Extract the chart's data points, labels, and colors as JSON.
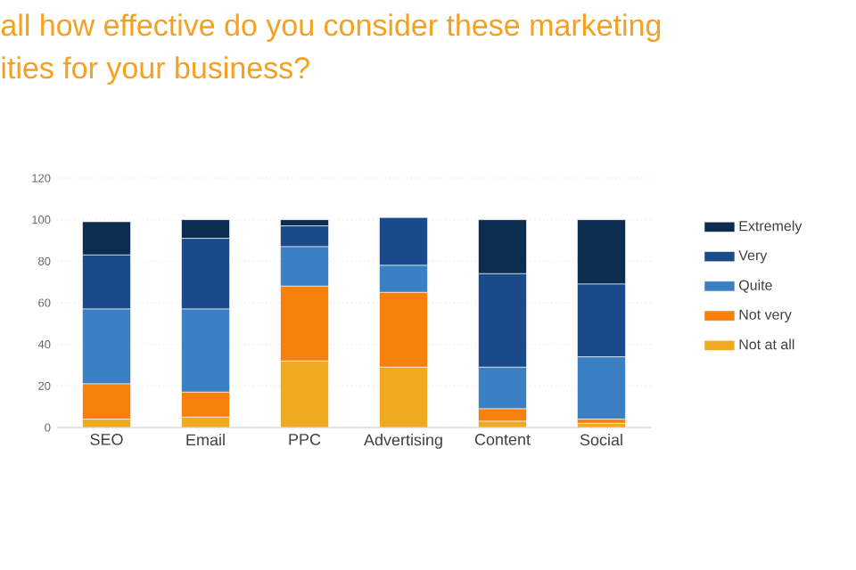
{
  "chart_data": {
    "type": "bar",
    "stacked": true,
    "title": "all how effective do you consider these marketing",
    "subtitle": "ities for your business?",
    "categories": [
      "SEO",
      "Email",
      "PPC",
      "Advertising",
      "Content",
      "Social"
    ],
    "series": [
      {
        "name": "Not at all",
        "color": "#efaa22",
        "values": [
          4,
          5,
          32,
          29,
          3,
          2
        ]
      },
      {
        "name": "Not very",
        "color": "#f77f0b",
        "values": [
          17,
          12,
          36,
          36,
          6,
          2
        ]
      },
      {
        "name": "Quite",
        "color": "#3c80c4",
        "values": [
          36,
          40,
          19,
          13,
          20,
          30
        ]
      },
      {
        "name": "Very",
        "color": "#1a4a8a",
        "values": [
          26,
          34,
          10,
          23,
          45,
          35
        ]
      },
      {
        "name": "Extremely",
        "color": "#0d2d50",
        "values": [
          16,
          9,
          3,
          0,
          26,
          31
        ]
      }
    ],
    "ylim": [
      0,
      120
    ],
    "yticks": [
      0,
      20,
      40,
      60,
      80,
      100,
      120
    ],
    "grid": "y",
    "legend": "right"
  }
}
